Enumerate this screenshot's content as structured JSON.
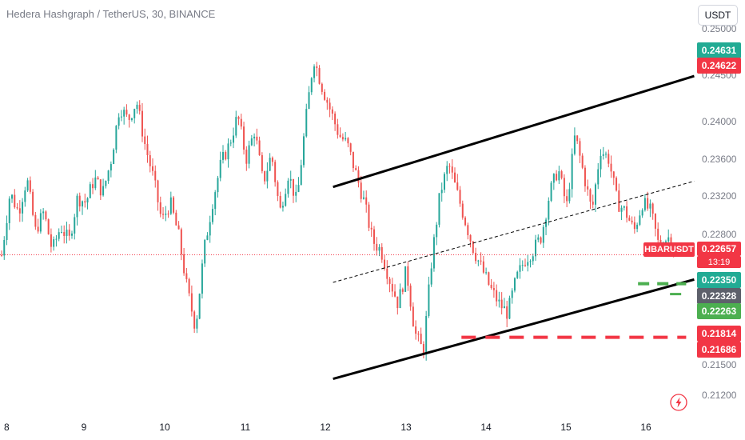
{
  "header": {
    "title": "Hedera Hashgraph / TetherUS, 30, BINANCE",
    "currency": "USDT"
  },
  "price_tags": {
    "high_green": "0.24631",
    "high_red": "0.24622",
    "current": "0.22657",
    "countdown": "13:19",
    "symbol": "HBARUSDT",
    "level1": "0.22350",
    "level2": "0.22328",
    "level3": "0.22263",
    "level4": "0.21814",
    "level5": "0.21686"
  },
  "icons": {
    "flash": "lightning-icon"
  },
  "colors": {
    "up": "#26a69a",
    "down": "#ef5350",
    "tag_green": "#22ab94",
    "tag_red": "#f23645",
    "tag_gray": "#5d606b",
    "tag_bright_green": "#4caf50",
    "current_tag": "#f23645"
  },
  "chart_data": {
    "type": "candlestick",
    "title": "Hedera Hashgraph / TetherUS, 30, BINANCE",
    "x_ticks": [
      "8",
      "9",
      "10",
      "11",
      "12",
      "13",
      "14",
      "15",
      "16"
    ],
    "y_ticks": [
      "0.25000",
      "0.24500",
      "0.24000",
      "0.23600",
      "0.23200",
      "0.22800",
      "0.22350",
      "0.21500",
      "0.21200"
    ],
    "ylim": [
      0.209,
      0.2508
    ],
    "current_price": 0.22657,
    "price_path": [
      0.2265,
      0.233,
      0.231,
      0.2345,
      0.229,
      0.231,
      0.227,
      0.2295,
      0.228,
      0.2325,
      0.232,
      0.2345,
      0.233,
      0.2365,
      0.242,
      0.2405,
      0.2425,
      0.238,
      0.2345,
      0.23,
      0.232,
      0.2285,
      0.223,
      0.219,
      0.227,
      0.232,
      0.236,
      0.238,
      0.241,
      0.2365,
      0.2395,
      0.234,
      0.237,
      0.231,
      0.235,
      0.232,
      0.24,
      0.247,
      0.244,
      0.2415,
      0.239,
      0.238,
      0.235,
      0.232,
      0.228,
      0.227,
      0.224,
      0.2215,
      0.225,
      0.2185,
      0.2165,
      0.226,
      0.233,
      0.236,
      0.233,
      0.23,
      0.227,
      0.225,
      0.223,
      0.2215,
      0.2205,
      0.224,
      0.226,
      0.227,
      0.2285,
      0.233,
      0.2355,
      0.2315,
      0.239,
      0.235,
      0.231,
      0.2375,
      0.2365,
      0.232,
      0.231,
      0.229,
      0.232,
      0.231,
      0.2272,
      0.2285,
      0.2265
    ],
    "annotations": {
      "channel_upper": [
        [
          12.1,
          0.2336
        ],
        [
          16.6,
          0.2451
        ]
      ],
      "channel_lower": [
        [
          12.1,
          0.2137
        ],
        [
          16.6,
          0.224
        ]
      ],
      "channel_mid": [
        [
          12.1,
          0.2237
        ],
        [
          16.6,
          0.2342
        ]
      ],
      "support_dashed_red": {
        "x": [
          13.7,
          16.5
        ],
        "y": 0.218
      },
      "support_dashed_green": {
        "x": [
          15.9,
          16.5
        ],
        "y": 0.2234
      }
    }
  }
}
